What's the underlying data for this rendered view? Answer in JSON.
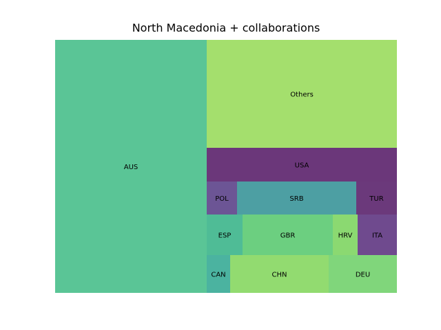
{
  "chart_data": {
    "type": "treemap",
    "title": "North Macedonia + collaborations",
    "tiles": [
      {
        "label": "AUS",
        "value": 44.7,
        "color": "#5ac596"
      },
      {
        "label": "Others",
        "value": 20.4,
        "color": "#a4df6d"
      },
      {
        "label": "USA",
        "value": 6.2,
        "color": "#6b377a"
      },
      {
        "label": "POL",
        "value": 1.3,
        "color": "#6c5595"
      },
      {
        "label": "SRB",
        "value": 3.9,
        "color": "#4d9fa3"
      },
      {
        "label": "TUR",
        "value": 1.4,
        "color": "#6b397b"
      },
      {
        "label": "ESP",
        "value": 1.9,
        "color": "#4fbc96"
      },
      {
        "label": "GBR",
        "value": 4.6,
        "color": "#6ccf80"
      },
      {
        "label": "HRV",
        "value": 1.3,
        "color": "#8bd971"
      },
      {
        "label": "ITA",
        "value": 2.0,
        "color": "#6f4a8e"
      },
      {
        "label": "CAN",
        "value": 0.9,
        "color": "#4bb3a0"
      },
      {
        "label": "CHN",
        "value": 3.6,
        "color": "#92db70"
      },
      {
        "label": "DEU",
        "value": 2.5,
        "color": "#80d67b"
      }
    ]
  }
}
